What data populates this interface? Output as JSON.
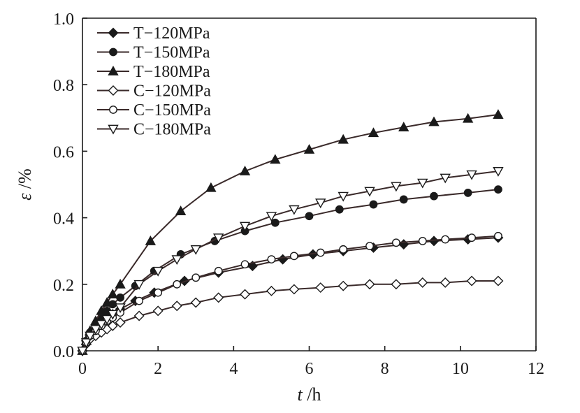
{
  "chart_data": {
    "type": "line",
    "xlabel_var": "t",
    "xlabel_unit": " /h",
    "ylabel_var": "ε",
    "ylabel_unit": " /%",
    "xlim": [
      0,
      12
    ],
    "ylim": [
      0,
      1.0
    ],
    "x_ticks": [
      "0",
      "2",
      "4",
      "6",
      "8",
      "10",
      "12"
    ],
    "y_ticks": [
      "0.0",
      "0.2",
      "0.4",
      "0.6",
      "0.8",
      "1.0"
    ],
    "grid": false,
    "legend_position": "top-left",
    "series": [
      {
        "name": "T−120MPa",
        "marker": "diamond-filled",
        "x": [
          0,
          0.1,
          0.2,
          0.35,
          0.5,
          0.65,
          0.8,
          1.0,
          1.4,
          1.9,
          2.7,
          3.6,
          4.5,
          5.3,
          6.1,
          6.9,
          7.7,
          8.5,
          9.3,
          10.2,
          11
        ],
        "y": [
          0,
          0.03,
          0.045,
          0.065,
          0.085,
          0.1,
          0.11,
          0.125,
          0.15,
          0.175,
          0.21,
          0.235,
          0.255,
          0.275,
          0.29,
          0.3,
          0.31,
          0.32,
          0.33,
          0.335,
          0.34
        ]
      },
      {
        "name": "T−150MPa",
        "marker": "circle-filled",
        "x": [
          0,
          0.1,
          0.2,
          0.35,
          0.5,
          0.65,
          0.8,
          1.0,
          1.4,
          1.9,
          2.6,
          3.5,
          4.3,
          5.1,
          6.0,
          6.8,
          7.7,
          8.5,
          9.3,
          10.2,
          11
        ],
        "y": [
          0,
          0.03,
          0.055,
          0.08,
          0.1,
          0.12,
          0.14,
          0.16,
          0.195,
          0.24,
          0.29,
          0.33,
          0.36,
          0.385,
          0.405,
          0.425,
          0.44,
          0.455,
          0.465,
          0.475,
          0.485
        ]
      },
      {
        "name": "T−180MPa",
        "marker": "triangle-up-filled",
        "x": [
          0,
          0.1,
          0.2,
          0.35,
          0.5,
          0.65,
          0.8,
          1.0,
          1.8,
          2.6,
          3.4,
          4.3,
          5.1,
          6.0,
          6.9,
          7.7,
          8.5,
          9.3,
          10.2,
          11
        ],
        "y": [
          0,
          0.03,
          0.06,
          0.09,
          0.12,
          0.145,
          0.17,
          0.2,
          0.33,
          0.42,
          0.49,
          0.54,
          0.575,
          0.605,
          0.635,
          0.655,
          0.672,
          0.688,
          0.698,
          0.71
        ]
      },
      {
        "name": "C−120MPa",
        "marker": "diamond-open",
        "x": [
          0,
          0.1,
          0.2,
          0.35,
          0.5,
          0.65,
          0.8,
          1.0,
          1.5,
          2.0,
          2.5,
          3.0,
          3.6,
          4.3,
          5.0,
          5.6,
          6.3,
          6.9,
          7.6,
          8.3,
          9.0,
          9.6,
          10.3,
          11
        ],
        "y": [
          0,
          0.02,
          0.035,
          0.045,
          0.055,
          0.065,
          0.075,
          0.085,
          0.105,
          0.12,
          0.135,
          0.145,
          0.16,
          0.17,
          0.18,
          0.185,
          0.19,
          0.195,
          0.2,
          0.2,
          0.205,
          0.205,
          0.21,
          0.21
        ]
      },
      {
        "name": "C−150MPa",
        "marker": "circle-open",
        "x": [
          0,
          0.1,
          0.2,
          0.35,
          0.5,
          0.65,
          0.8,
          1.0,
          1.5,
          2.0,
          2.5,
          3.0,
          3.6,
          4.3,
          5.0,
          5.6,
          6.3,
          6.9,
          7.6,
          8.3,
          9.0,
          9.6,
          10.3,
          11
        ],
        "y": [
          0,
          0.025,
          0.045,
          0.06,
          0.075,
          0.09,
          0.1,
          0.115,
          0.15,
          0.175,
          0.2,
          0.22,
          0.24,
          0.26,
          0.275,
          0.285,
          0.295,
          0.305,
          0.315,
          0.325,
          0.33,
          0.335,
          0.34,
          0.345
        ]
      },
      {
        "name": "C−180MPa",
        "marker": "triangle-down-open",
        "x": [
          0,
          0.1,
          0.2,
          0.35,
          0.5,
          0.65,
          0.8,
          1.0,
          1.5,
          2.0,
          2.5,
          3.0,
          3.6,
          4.3,
          5.0,
          5.6,
          6.3,
          6.9,
          7.6,
          8.3,
          9.0,
          9.6,
          10.3,
          11
        ],
        "y": [
          0,
          0.025,
          0.045,
          0.065,
          0.08,
          0.095,
          0.11,
          0.13,
          0.2,
          0.24,
          0.275,
          0.305,
          0.34,
          0.375,
          0.405,
          0.425,
          0.445,
          0.465,
          0.48,
          0.495,
          0.505,
          0.52,
          0.53,
          0.54
        ]
      }
    ]
  }
}
